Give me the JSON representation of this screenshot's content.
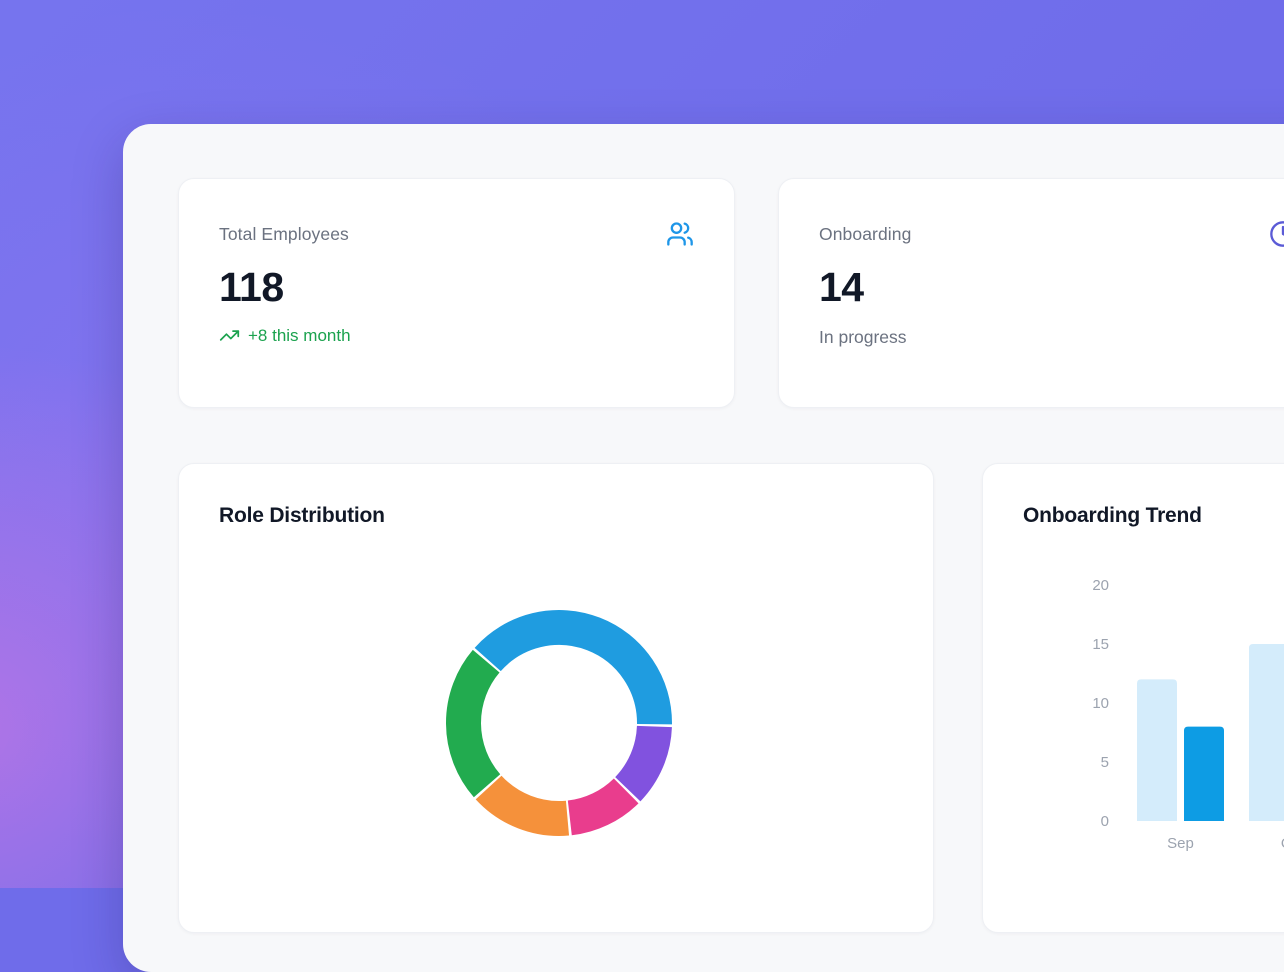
{
  "theme": {
    "background_purple": "#6f6cea",
    "panel_background": "#f7f8fa",
    "card_background": "#ffffff",
    "heading_color": "#111827",
    "muted_text_color": "#6b7280"
  },
  "stats": {
    "total_employees": {
      "label": "Total Employees",
      "value": "118",
      "trend": "+8 this month",
      "trend_color": "#1ba24e",
      "icon": "users-icon",
      "icon_color": "#1e96e8"
    },
    "onboarding": {
      "label": "Onboarding",
      "value": "14",
      "subtext": "In progress",
      "icon": "clock-icon",
      "icon_color": "#5b5bd6"
    }
  },
  "chart_data": [
    {
      "type": "pie",
      "title": "Role Distribution",
      "donut": true,
      "start_angle_deg": -49,
      "labels_visible": false,
      "legend": "none",
      "segments": [
        {
          "name": "blue",
          "percent": 39,
          "color": "#1f9ce0"
        },
        {
          "name": "purple",
          "percent": 12,
          "color": "#8152df"
        },
        {
          "name": "pink",
          "percent": 11,
          "color": "#e93d8d"
        },
        {
          "name": "orange",
          "percent": 15,
          "color": "#f5913b"
        },
        {
          "name": "green",
          "percent": 23,
          "color": "#22ab4f"
        }
      ]
    },
    {
      "type": "bar",
      "title": "Onboarding Trend",
      "categories": [
        "Sep",
        "Oct"
      ],
      "series": [
        {
          "name": "light-blue",
          "color": "#d4ecfb",
          "values": [
            12,
            15
          ]
        },
        {
          "name": "blue",
          "color": "#0d9ce4",
          "values": [
            8,
            null
          ]
        }
      ],
      "xlabel": "",
      "ylabel": "",
      "yticks": [
        0,
        5,
        10,
        15,
        20
      ],
      "ylim": [
        0,
        20
      ],
      "grid": false,
      "legend": "none"
    }
  ]
}
